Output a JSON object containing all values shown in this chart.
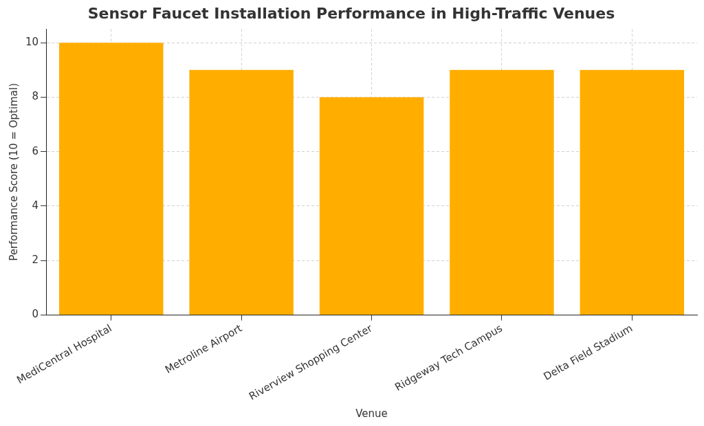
{
  "chart_data": {
    "type": "bar",
    "title": "Sensor Faucet Installation Performance in High-Traffic Venues",
    "xlabel": "Venue",
    "ylabel": "Performance Score (10 = Optimal)",
    "categories": [
      "MediCentral Hospital",
      "Metroline Airport",
      "Riverview Shopping Center",
      "Ridgeway Tech Campus",
      "Delta Field Stadium"
    ],
    "values": [
      10,
      9,
      8,
      9,
      9
    ],
    "color": "#ffae00",
    "ylim": [
      0,
      10.5
    ],
    "yticks": [
      0,
      2,
      4,
      6,
      8,
      10
    ],
    "grid": true
  }
}
